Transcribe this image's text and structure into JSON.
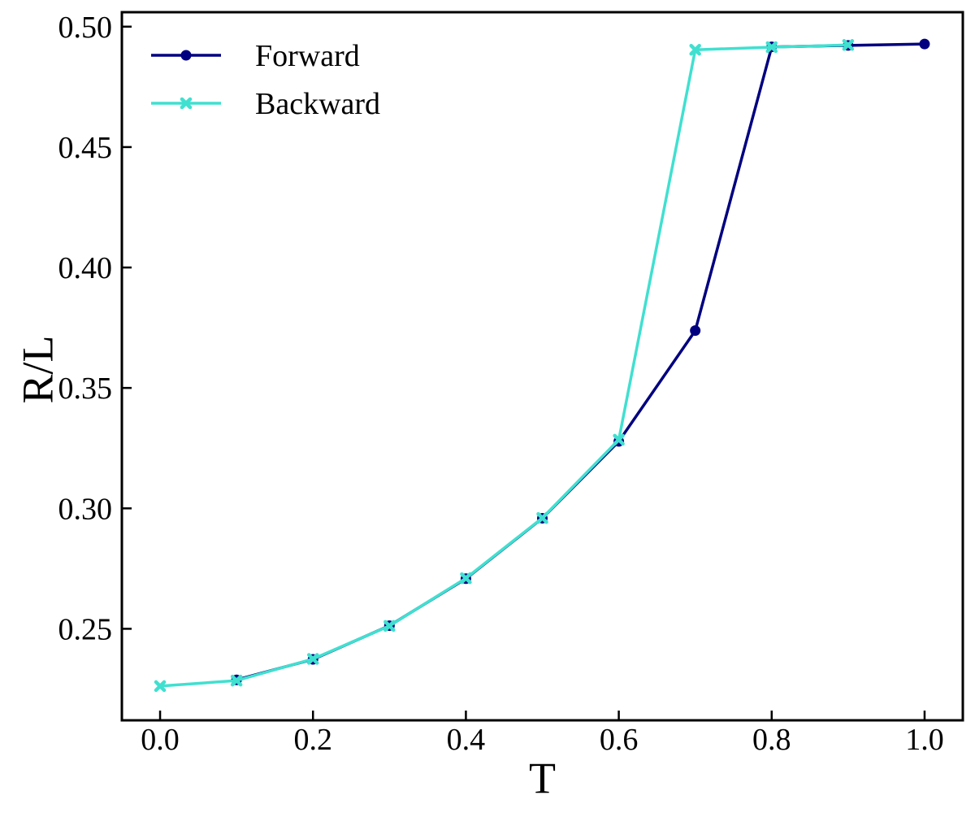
{
  "chart_data": {
    "type": "line",
    "xlabel": "T",
    "ylabel": "R/L",
    "xlim": [
      -0.05,
      1.05
    ],
    "ylim": [
      0.212,
      0.506
    ],
    "xticks": [
      "0.0",
      "0.2",
      "0.4",
      "0.6",
      "0.8",
      "1.0"
    ],
    "yticks": [
      "0.25",
      "0.30",
      "0.35",
      "0.40",
      "0.45",
      "0.50"
    ],
    "grid": false,
    "legend_position": "top-left",
    "series": [
      {
        "name": "Forward",
        "color": "#000080",
        "marker": "circle",
        "x": [
          0.1,
          0.2,
          0.3,
          0.4,
          0.5,
          0.6,
          0.7,
          0.8,
          0.9,
          1.0
        ],
        "y": [
          0.2288,
          0.2373,
          0.2513,
          0.2708,
          0.2959,
          0.3278,
          0.3738,
          0.4916,
          0.4922,
          0.4928
        ]
      },
      {
        "name": "Backward",
        "color": "#40E0D0",
        "marker": "x",
        "x": [
          0.0,
          0.1,
          0.2,
          0.3,
          0.4,
          0.5,
          0.6,
          0.7,
          0.8,
          0.9
        ],
        "y": [
          0.2262,
          0.2285,
          0.2375,
          0.2512,
          0.271,
          0.296,
          0.3285,
          0.4904,
          0.4915,
          0.4924
        ]
      }
    ]
  }
}
